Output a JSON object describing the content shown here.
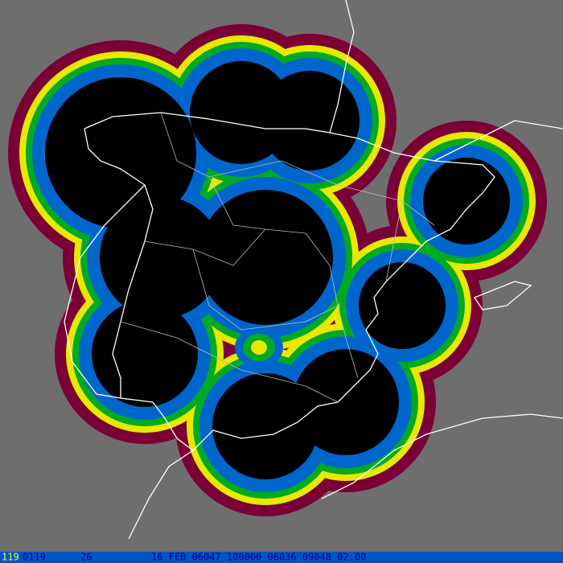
{
  "status_bar": {
    "id": "119",
    "code": "0119",
    "value": "26",
    "info": "16 FEB 06047 100000 06836 09048 02.00"
  }
}
